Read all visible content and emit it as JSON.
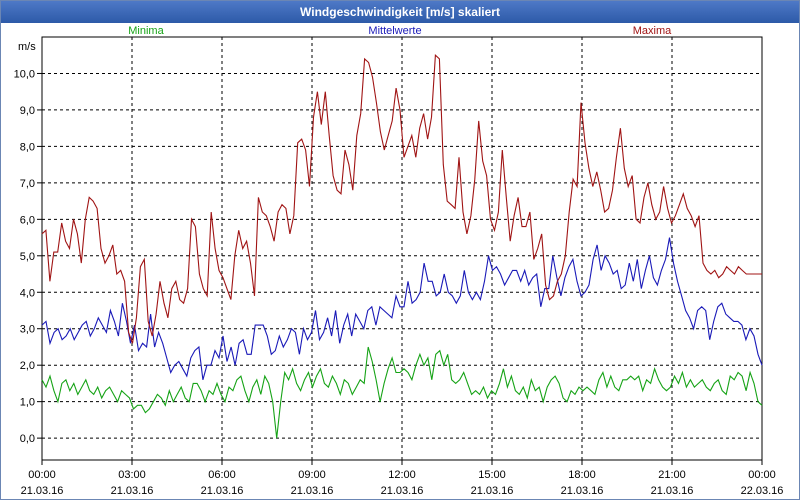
{
  "chart_data": {
    "type": "line",
    "title": "Windgeschwindigkeit [m/s] skaliert",
    "ylabel": "m/s",
    "xlabel": "",
    "ylim": [
      -0.6,
      11.0
    ],
    "xlim_hours": [
      0,
      24
    ],
    "grid": true,
    "y_ticks": [
      "0,0",
      "1,0",
      "2,0",
      "3,0",
      "4,0",
      "5,0",
      "6,0",
      "7,0",
      "8,0",
      "9,0",
      "10,0"
    ],
    "x_ticks": [
      {
        "time": "00:00",
        "date": "21.03.16"
      },
      {
        "time": "03:00",
        "date": "21.03.16"
      },
      {
        "time": "06:00",
        "date": "21.03.16"
      },
      {
        "time": "09:00",
        "date": "21.03.16"
      },
      {
        "time": "12:00",
        "date": "21.03.16"
      },
      {
        "time": "15:00",
        "date": "21.03.16"
      },
      {
        "time": "18:00",
        "date": "21.03.16"
      },
      {
        "time": "21:00",
        "date": "21.03.16"
      },
      {
        "time": "00:00",
        "date": "22.03.16"
      }
    ],
    "series": [
      {
        "name": "Minima",
        "color": "#16a316",
        "legend_position": "left",
        "values": [
          1.6,
          1.4,
          1.7,
          1.3,
          1.0,
          1.5,
          1.6,
          1.3,
          1.5,
          1.2,
          1.4,
          1.6,
          1.3,
          1.2,
          1.4,
          1.1,
          1.3,
          1.4,
          1.2,
          1.0,
          1.3,
          1.2,
          1.1,
          0.8,
          0.9,
          0.9,
          0.7,
          0.8,
          1.0,
          1.2,
          1.1,
          0.9,
          1.3,
          1.0,
          1.2,
          1.4,
          1.1,
          1.0,
          1.5,
          1.5,
          1.3,
          1.0,
          1.3,
          1.2,
          1.5,
          1.2,
          1.0,
          1.4,
          1.3,
          1.6,
          1.7,
          1.3,
          1.0,
          1.4,
          1.6,
          1.2,
          1.7,
          1.5,
          1.0,
          0.0,
          1.0,
          1.8,
          1.6,
          1.9,
          1.5,
          1.3,
          1.6,
          1.8,
          1.4,
          1.7,
          1.9,
          1.5,
          1.4,
          1.7,
          1.5,
          1.2,
          1.6,
          1.5,
          1.2,
          1.4,
          1.6,
          1.5,
          2.5,
          2.1,
          1.6,
          1.0,
          1.5,
          1.9,
          2.2,
          1.8,
          1.8,
          1.9,
          1.8,
          1.6,
          2.0,
          2.3,
          2.0,
          2.2,
          1.6,
          2.3,
          2.4,
          2.0,
          2.3,
          1.6,
          1.5,
          1.6,
          1.8,
          1.5,
          1.2,
          1.3,
          1.2,
          1.4,
          1.1,
          1.3,
          1.2,
          1.5,
          1.9,
          1.4,
          1.7,
          1.3,
          1.2,
          1.4,
          1.1,
          1.6,
          1.3,
          1.4,
          1.0,
          1.4,
          1.6,
          1.7,
          1.5,
          1.1,
          1.0,
          1.3,
          1.2,
          1.4,
          1.3,
          1.4,
          1.3,
          1.2,
          1.6,
          1.8,
          1.4,
          1.7,
          1.4,
          1.3,
          1.6,
          1.6,
          1.7,
          1.6,
          1.7,
          1.3,
          1.6,
          1.5,
          1.9,
          1.6,
          1.4,
          1.3,
          1.4,
          1.7,
          1.5,
          1.8,
          1.4,
          1.6,
          1.4,
          1.5,
          1.6,
          1.4,
          1.3,
          1.5,
          1.6,
          1.3,
          1.2,
          1.7,
          1.6,
          1.8,
          1.7,
          1.3,
          1.8,
          1.5,
          1.0,
          0.9
        ]
      },
      {
        "name": "Mittelwerte",
        "color": "#1a1ab8",
        "legend_position": "center",
        "values": [
          3.1,
          3.2,
          2.6,
          2.9,
          3.0,
          2.7,
          2.8,
          3.0,
          2.7,
          2.9,
          3.1,
          3.2,
          2.8,
          3.0,
          3.3,
          3.1,
          2.9,
          3.5,
          3.2,
          2.8,
          3.7,
          3.2,
          2.6,
          3.1,
          2.4,
          2.6,
          2.5,
          3.4,
          2.5,
          2.9,
          2.6,
          2.2,
          1.8,
          2.0,
          2.1,
          1.9,
          1.7,
          2.2,
          2.4,
          2.5,
          1.6,
          2.0,
          2.0,
          2.4,
          2.2,
          2.8,
          2.1,
          2.5,
          2.0,
          2.6,
          2.7,
          2.3,
          2.3,
          3.1,
          3.1,
          3.1,
          2.8,
          2.3,
          2.4,
          2.8,
          2.5,
          2.7,
          3.0,
          2.9,
          2.3,
          3.0,
          2.7,
          2.9,
          3.5,
          2.7,
          2.9,
          3.3,
          2.8,
          3.5,
          2.6,
          3.1,
          3.4,
          2.8,
          3.4,
          3.2,
          3.0,
          3.5,
          3.6,
          3.1,
          3.6,
          3.5,
          3.4,
          3.3,
          3.9,
          3.6,
          3.6,
          4.3,
          3.7,
          3.8,
          4.0,
          4.8,
          4.3,
          4.3,
          3.9,
          4.0,
          4.5,
          4.0,
          3.9,
          3.7,
          3.9,
          4.6,
          4.0,
          3.8,
          4.0,
          3.8,
          4.3,
          5.0,
          4.6,
          4.7,
          4.5,
          4.2,
          4.4,
          4.6,
          4.6,
          4.3,
          4.6,
          4.2,
          4.4,
          4.5,
          3.6,
          4.1,
          4.1,
          5.0,
          4.4,
          3.9,
          4.4,
          4.7,
          4.9,
          4.3,
          3.9,
          4.0,
          4.2,
          4.9,
          5.3,
          4.6,
          5.0,
          4.8,
          4.5,
          4.6,
          4.1,
          4.2,
          4.8,
          4.3,
          4.9,
          4.1,
          4.6,
          5.0,
          4.4,
          4.2,
          4.6,
          4.9,
          5.5,
          4.8,
          4.3,
          3.9,
          3.5,
          3.3,
          3.0,
          3.5,
          3.6,
          3.5,
          2.7,
          3.2,
          3.6,
          3.7,
          3.4,
          3.3,
          3.2,
          3.2,
          3.1,
          2.7,
          3.0,
          2.8,
          2.3,
          2.0
        ]
      },
      {
        "name": "Maxima",
        "color": "#a01414",
        "legend_position": "right",
        "values": [
          5.6,
          5.7,
          4.3,
          5.1,
          5.1,
          5.9,
          5.4,
          5.2,
          6.0,
          5.6,
          4.8,
          6.0,
          6.6,
          6.5,
          6.3,
          5.2,
          4.8,
          5.0,
          5.3,
          4.5,
          4.6,
          4.3,
          2.9,
          2.6,
          3.3,
          4.7,
          4.9,
          3.2,
          2.8,
          3.4,
          4.3,
          3.7,
          3.3,
          4.1,
          4.3,
          3.8,
          3.7,
          4.1,
          6.0,
          5.8,
          4.5,
          4.1,
          3.9,
          6.2,
          5.2,
          4.6,
          4.4,
          4.1,
          3.8,
          5.0,
          5.7,
          5.2,
          5.4,
          4.8,
          3.9,
          6.6,
          6.2,
          6.1,
          5.8,
          5.4,
          6.2,
          6.4,
          6.3,
          5.6,
          6.1,
          8.1,
          8.2,
          7.9,
          6.9,
          8.8,
          9.5,
          8.6,
          9.5,
          8.3,
          7.2,
          6.8,
          6.7,
          7.9,
          7.5,
          6.8,
          8.3,
          8.9,
          10.4,
          10.3,
          9.9,
          9.2,
          8.4,
          7.9,
          8.3,
          8.7,
          9.6,
          9.0,
          7.7,
          8.0,
          8.3,
          7.7,
          8.5,
          8.9,
          8.2,
          8.8,
          10.5,
          10.4,
          7.5,
          6.5,
          6.4,
          6.3,
          7.7,
          6.2,
          5.6,
          6.1,
          7.1,
          8.7,
          7.6,
          7.2,
          6.0,
          5.7,
          6.2,
          7.9,
          6.6,
          5.4,
          6.1,
          6.6,
          5.8,
          5.8,
          6.2,
          4.9,
          5.2,
          5.6,
          4.2,
          3.8,
          3.9,
          4.3,
          4.5,
          5.0,
          6.2,
          7.1,
          6.9,
          9.2,
          8.1,
          7.4,
          6.9,
          7.3,
          6.8,
          6.2,
          6.3,
          6.8,
          7.7,
          8.5,
          7.4,
          6.9,
          7.2,
          6.0,
          5.9,
          6.6,
          7.0,
          6.4,
          6.0,
          6.2,
          6.9,
          6.3,
          5.9,
          6.1,
          6.4,
          6.7,
          6.3,
          6.1,
          5.8,
          6.1,
          4.8,
          4.6,
          4.5,
          4.6,
          4.4,
          4.5,
          4.7,
          4.6,
          4.5,
          4.7,
          4.6,
          4.5,
          4.5,
          4.5,
          4.5,
          4.5
        ]
      }
    ]
  }
}
